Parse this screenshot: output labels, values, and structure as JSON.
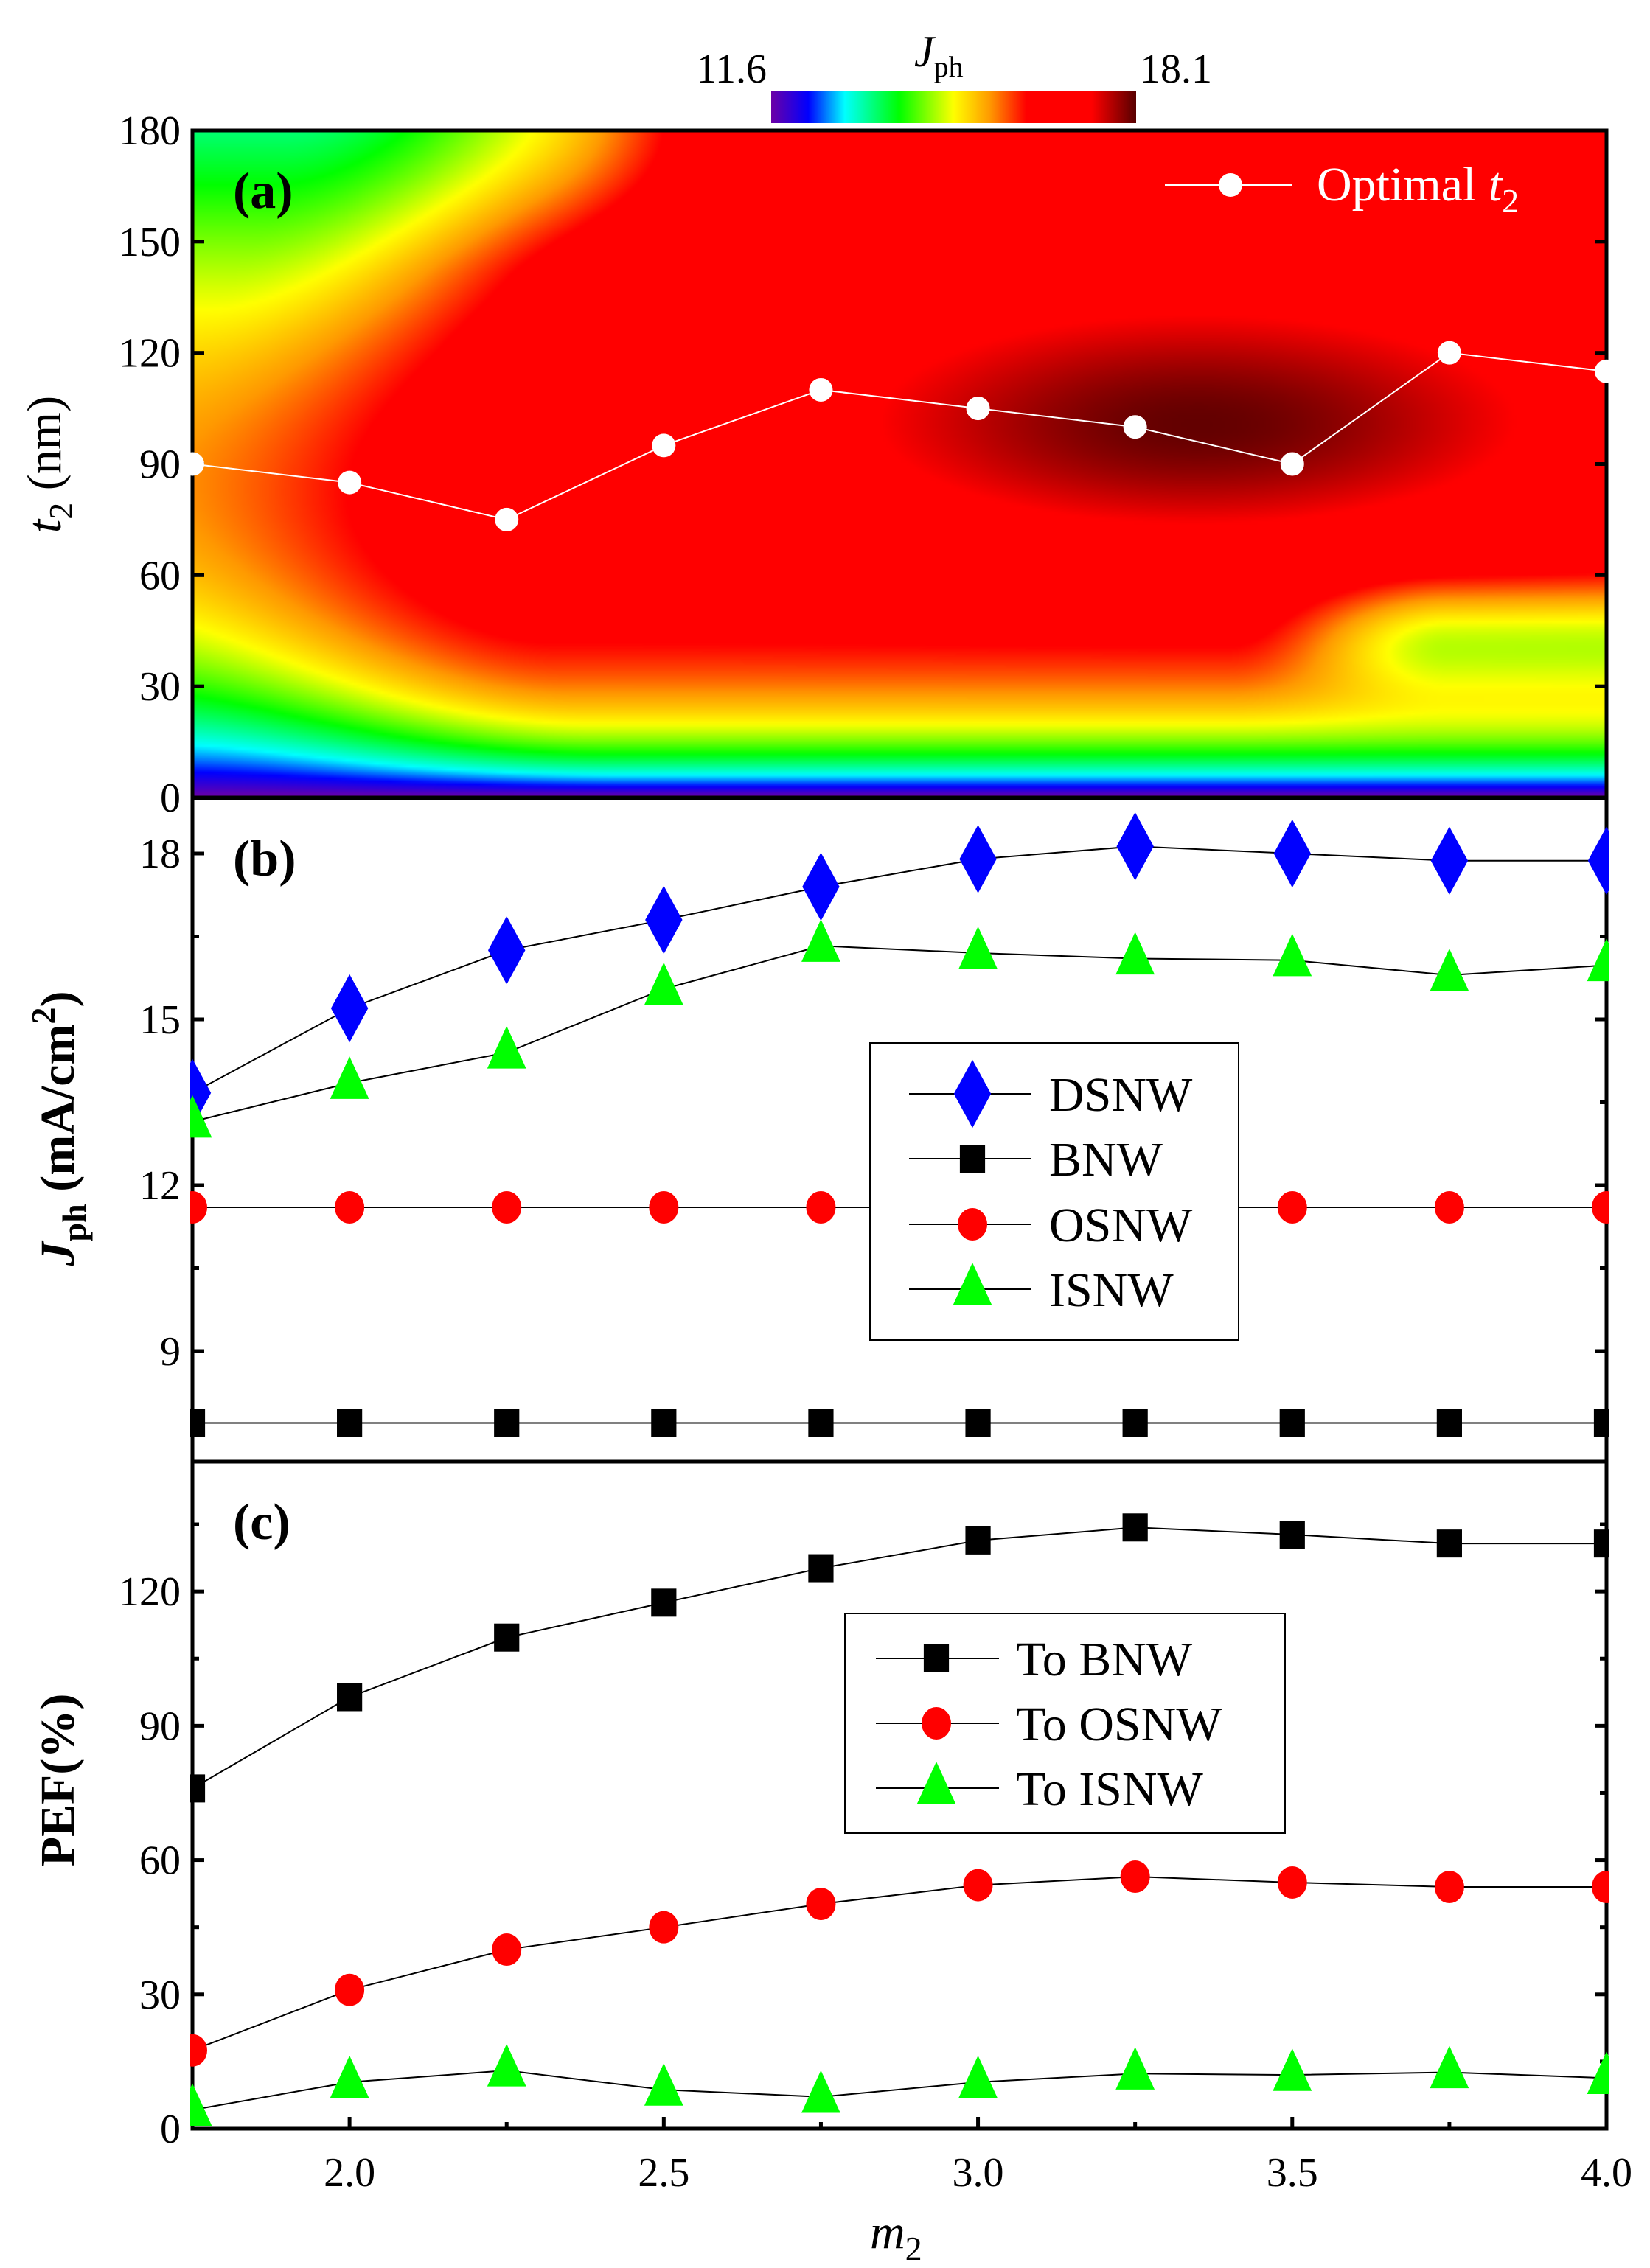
{
  "colorbar": {
    "label_symbol": "J",
    "label_sub": "ph",
    "min_label": "11.6",
    "max_label": "18.1",
    "stops": [
      "#6a00a8",
      "#0000ff",
      "#00ffff",
      "#00ff00",
      "#ffff00",
      "#ff9900",
      "#ff0000",
      "#ff0000",
      "#5a0000"
    ]
  },
  "x_axis": {
    "label_symbol": "m",
    "label_sub": "2",
    "range": [
      1.75,
      4.0
    ],
    "ticks": [
      {
        "v": 2.0,
        "t": "2.0"
      },
      {
        "v": 2.5,
        "t": "2.5"
      },
      {
        "v": 3.0,
        "t": "3.0"
      },
      {
        "v": 3.5,
        "t": "3.5"
      },
      {
        "v": 4.0,
        "t": "4.0"
      }
    ],
    "minor_ticks": [
      2.25,
      2.75,
      3.25,
      3.75
    ]
  },
  "chart_data": [
    {
      "type": "heatmap",
      "panel_label": "(a)",
      "ylabel_symbol": "t",
      "ylabel_sub": "2",
      "ylabel_unit": " (nm)",
      "ylim": [
        0,
        180
      ],
      "yticks": [
        "0",
        "30",
        "60",
        "90",
        "120",
        "150",
        "180"
      ],
      "z_range": [
        11.6,
        18.1
      ],
      "series": [
        {
          "name_text": "Optimal ",
          "name_symbol": "t",
          "name_sub": "2",
          "color": "#ffffff",
          "x": [
            1.75,
            2.0,
            2.25,
            2.5,
            2.75,
            3.0,
            3.25,
            3.5,
            3.75,
            4.0
          ],
          "y": [
            90,
            85,
            75,
            95,
            110,
            105,
            100,
            90,
            120,
            115
          ]
        }
      ]
    },
    {
      "type": "line",
      "panel_label": "(b)",
      "ylabel_symbol": "J",
      "ylabel_sub": "ph",
      "ylabel_unit": " (mA/cm",
      "ylabel_sup": "2",
      "ylabel_close": ")",
      "ylim": [
        7,
        19
      ],
      "yticks": [
        "9",
        "12",
        "15",
        "18"
      ],
      "x": [
        1.75,
        2.0,
        2.25,
        2.5,
        2.75,
        3.0,
        3.25,
        3.5,
        3.75,
        4.0
      ],
      "legend": "center",
      "series": [
        {
          "name": "DSNW",
          "marker": "diamond",
          "color": "#0000ff",
          "values": [
            13.67,
            15.2,
            16.25,
            16.8,
            17.4,
            17.9,
            18.13,
            18.0,
            17.87,
            17.87
          ]
        },
        {
          "name": "BNW",
          "marker": "square",
          "color": "#000000",
          "values": [
            7.7,
            7.7,
            7.7,
            7.7,
            7.7,
            7.7,
            7.7,
            7.7,
            7.7,
            7.7
          ]
        },
        {
          "name": "OSNW",
          "marker": "circle",
          "color": "#ff0000",
          "values": [
            11.6,
            11.6,
            11.6,
            11.6,
            11.6,
            11.6,
            11.6,
            11.6,
            11.6,
            11.6
          ]
        },
        {
          "name": "ISNW",
          "marker": "triangle",
          "color": "#00ff00",
          "values": [
            13.15,
            13.85,
            14.4,
            15.55,
            16.33,
            16.2,
            16.1,
            16.07,
            15.8,
            15.98
          ]
        }
      ]
    },
    {
      "type": "line",
      "panel_label": "(c)",
      "ylabel": "PEF(%)",
      "ylim": [
        0,
        149
      ],
      "yticks": [
        "0",
        "30",
        "60",
        "90",
        "120"
      ],
      "x": [
        1.75,
        2.0,
        2.25,
        2.5,
        2.75,
        3.0,
        3.25,
        3.5,
        3.75,
        4.0
      ],
      "legend": "center-right",
      "series": [
        {
          "name": "To BNW",
          "marker": "square",
          "color": "#000000",
          "values": [
            76,
            96.4,
            109.7,
            117.5,
            125.2,
            131.4,
            134.3,
            132.7,
            130.7,
            130.7
          ]
        },
        {
          "name": "To OSNW",
          "marker": "circle",
          "color": "#ff0000",
          "values": [
            17.5,
            31,
            40,
            45,
            50.2,
            54.4,
            56.3,
            55,
            54,
            54
          ]
        },
        {
          "name": "To ISNW",
          "marker": "triangle",
          "color": "#00ff00",
          "values": [
            4.2,
            10.4,
            13,
            8.7,
            7.1,
            10.4,
            12.3,
            12,
            12.6,
            11.3
          ]
        }
      ]
    }
  ]
}
